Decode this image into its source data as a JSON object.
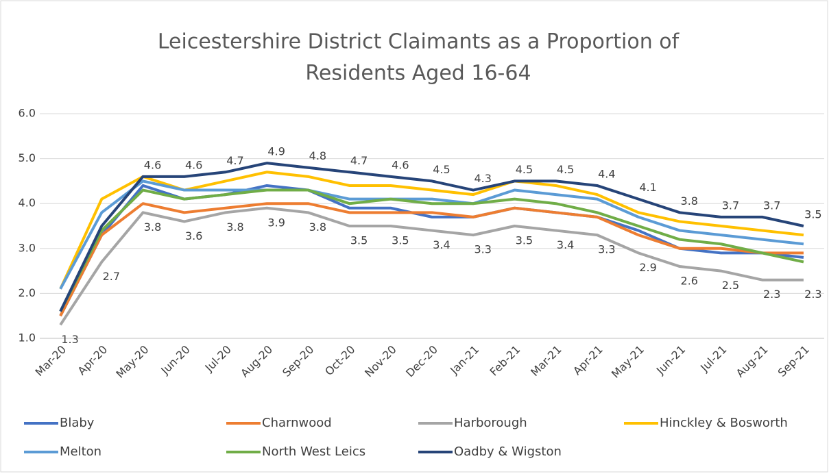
{
  "chart_data": {
    "type": "line",
    "title": "Leicestershire District Claimants as a Proportion of",
    "subtitle": "Residents Aged 16-64",
    "categories": [
      "Mar-20",
      "Apr-20",
      "May-20",
      "Jun-20",
      "Jul-20",
      "Aug-20",
      "Sep-20",
      "Oct-20",
      "Nov-20",
      "Dec-20",
      "Jan-21",
      "Feb-21",
      "Mar-21",
      "Apr-21",
      "May-21",
      "Jun-21",
      "Jul-21",
      "Aug-21",
      "Sep-21"
    ],
    "ylim": [
      1,
      6
    ],
    "yticks": [
      {
        "value": 1,
        "label": "1.0"
      },
      {
        "value": 2,
        "label": "2.0"
      },
      {
        "value": 3,
        "label": "3.0"
      },
      {
        "value": 4,
        "label": "4.0"
      },
      {
        "value": 5,
        "label": "5.0"
      },
      {
        "value": 6,
        "label": "6.0"
      }
    ],
    "grid": true,
    "legend": "bottom",
    "series": [
      {
        "name": "Blaby",
        "color": "#4472c4",
        "values": [
          1.5,
          3.3,
          4.4,
          4.1,
          4.2,
          4.4,
          4.3,
          3.9,
          3.9,
          3.7,
          3.7,
          3.9,
          3.8,
          3.7,
          3.4,
          3.0,
          2.9,
          2.9,
          2.8
        ]
      },
      {
        "name": "Charnwood",
        "color": "#ed7d31",
        "values": [
          1.5,
          3.3,
          4.0,
          3.8,
          3.9,
          4.0,
          4.0,
          3.8,
          3.8,
          3.8,
          3.7,
          3.9,
          3.8,
          3.7,
          3.3,
          3.0,
          3.0,
          2.9,
          2.9
        ]
      },
      {
        "name": "Harborough",
        "color": "#a5a5a5",
        "values": [
          1.3,
          2.7,
          3.8,
          3.6,
          3.8,
          3.9,
          3.8,
          3.5,
          3.5,
          3.4,
          3.3,
          3.5,
          3.4,
          3.3,
          2.9,
          2.6,
          2.5,
          2.3,
          2.3
        ],
        "value_labels": [
          "1.3",
          "2.7",
          "3.8",
          "3.6",
          "3.8",
          "3.9",
          "3.8",
          "3.5",
          "3.5",
          "3.4",
          "3.3",
          "3.5",
          "3.4",
          "3.3",
          "2.9",
          "2.6",
          "2.5",
          "2.3",
          "2.3"
        ],
        "label_side": "below"
      },
      {
        "name": "Hinckley & Bosworth",
        "color": "#ffc000",
        "values": [
          2.1,
          4.1,
          4.6,
          4.3,
          4.5,
          4.7,
          4.6,
          4.4,
          4.4,
          4.3,
          4.2,
          4.5,
          4.4,
          4.2,
          3.8,
          3.6,
          3.5,
          3.4,
          3.3
        ]
      },
      {
        "name": "Melton",
        "color": "#5b9bd5",
        "values": [
          2.1,
          3.8,
          4.5,
          4.3,
          4.3,
          4.3,
          4.3,
          4.1,
          4.1,
          4.1,
          4.0,
          4.3,
          4.2,
          4.1,
          3.7,
          3.4,
          3.3,
          3.2,
          3.1
        ]
      },
      {
        "name": "North West Leics",
        "color": "#70ad47",
        "values": [
          1.6,
          3.4,
          4.3,
          4.1,
          4.2,
          4.3,
          4.3,
          4.0,
          4.1,
          4.0,
          4.0,
          4.1,
          4.0,
          3.8,
          3.5,
          3.2,
          3.1,
          2.9,
          2.7
        ]
      },
      {
        "name": "Oadby & Wigston",
        "color": "#264478",
        "values": [
          1.6,
          3.5,
          4.6,
          4.6,
          4.7,
          4.9,
          4.8,
          4.7,
          4.6,
          4.5,
          4.3,
          4.5,
          4.5,
          4.4,
          4.1,
          3.8,
          3.7,
          3.7,
          3.5
        ],
        "value_labels": [
          null,
          null,
          "4.6",
          "4.6",
          "4.7",
          "4.9",
          "4.8",
          "4.7",
          "4.6",
          "4.5",
          "4.3",
          "4.5",
          "4.5",
          "4.4",
          "4.1",
          "3.8",
          "3.7",
          "3.7",
          "3.5"
        ],
        "label_side": "above"
      }
    ]
  }
}
